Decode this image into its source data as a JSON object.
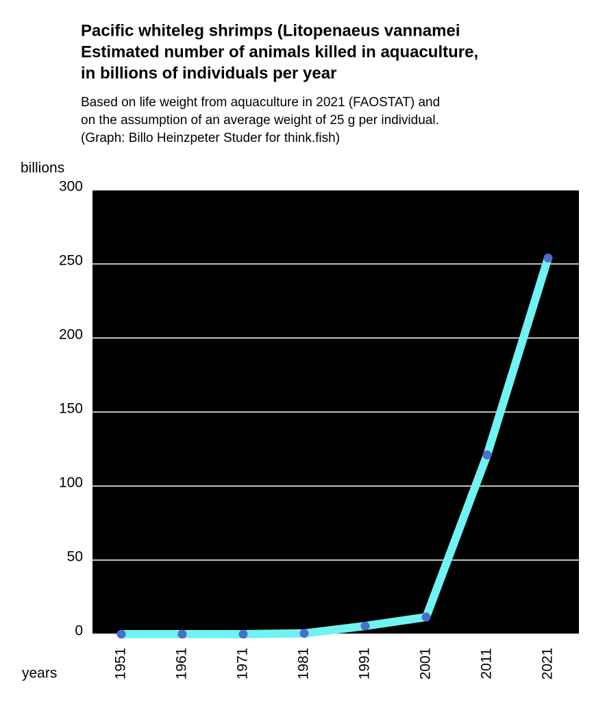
{
  "chart_data": {
    "type": "line",
    "title": [
      "Pacific whiteleg shrimps (Litopenaeus vannamei",
      "Estimated number of animals killed in aquaculture,",
      "in billions of individuals per year"
    ],
    "subtitle": [
      "Based on life weight from aquaculture in 2021 (FAOSTAT) and",
      "on  the assumption of an average weight of 25 g per individual.",
      "(Graph: Billo Heinzpeter Studer for think.fish)"
    ],
    "y_label": "billions",
    "x_label": "years",
    "categories": [
      "1951",
      "1961",
      "1971",
      "1981",
      "1991",
      "2001",
      "2011",
      "2021"
    ],
    "series": [
      {
        "color": "#6ff3f3",
        "marker_color": "#4a6fc9",
        "values": [
          0,
          0,
          0,
          0.5,
          5.5,
          11.5,
          121,
          254
        ]
      }
    ],
    "ylim": [
      0,
      300
    ],
    "yticks": [
      0,
      50,
      100,
      150,
      200,
      250,
      300
    ],
    "grid": true
  }
}
